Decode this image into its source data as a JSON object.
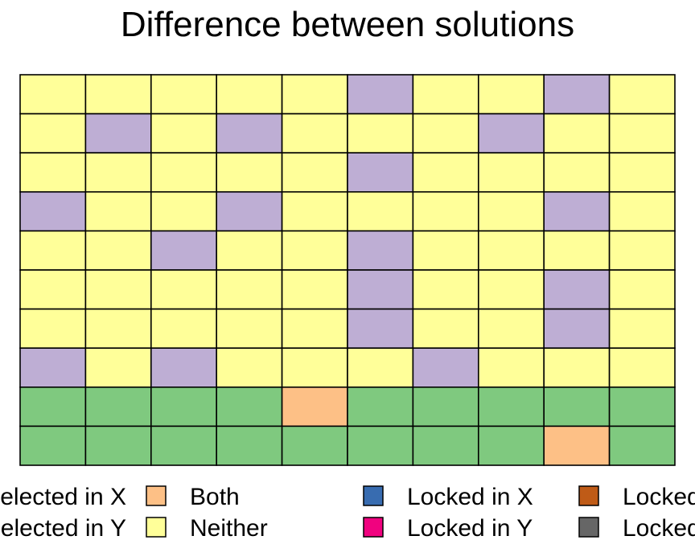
{
  "chart_data": {
    "type": "heatmap",
    "title": "Difference between solutions",
    "rows": 10,
    "cols": 10,
    "categories": {
      "S": "Selected in X",
      "Y": "Selected in Y",
      "B": "Both",
      "N": "Neither",
      "LX": "Locked in X",
      "LY": "Locked in Y",
      "LO": "Locked out in X",
      "LG": "Locked out in Y"
    },
    "colors": {
      "S": "#7fc97f",
      "Y": "#beaed4",
      "B": "#fdc086",
      "N": "#ffff99",
      "LX": "#386cb0",
      "LY": "#f0027f",
      "LO": "#bf5b17",
      "LG": "#666666"
    },
    "grid": [
      [
        "N",
        "N",
        "N",
        "N",
        "N",
        "Y",
        "N",
        "N",
        "Y",
        "N"
      ],
      [
        "N",
        "Y",
        "N",
        "Y",
        "N",
        "N",
        "N",
        "Y",
        "N",
        "N"
      ],
      [
        "N",
        "N",
        "N",
        "N",
        "N",
        "Y",
        "N",
        "N",
        "N",
        "N"
      ],
      [
        "Y",
        "N",
        "N",
        "Y",
        "N",
        "N",
        "N",
        "N",
        "Y",
        "N"
      ],
      [
        "N",
        "N",
        "Y",
        "N",
        "N",
        "Y",
        "N",
        "N",
        "N",
        "N"
      ],
      [
        "N",
        "N",
        "N",
        "N",
        "N",
        "Y",
        "N",
        "N",
        "Y",
        "N"
      ],
      [
        "N",
        "N",
        "N",
        "N",
        "N",
        "Y",
        "N",
        "N",
        "Y",
        "N"
      ],
      [
        "Y",
        "N",
        "Y",
        "N",
        "N",
        "N",
        "Y",
        "N",
        "N",
        "N"
      ],
      [
        "S",
        "S",
        "S",
        "S",
        "B",
        "S",
        "S",
        "S",
        "S",
        "S"
      ],
      [
        "S",
        "S",
        "S",
        "S",
        "S",
        "S",
        "S",
        "S",
        "B",
        "S"
      ]
    ],
    "legend": [
      {
        "key": "S",
        "label": "Selected in X"
      },
      {
        "key": "Y",
        "label": "Selected in Y"
      },
      {
        "key": "B",
        "label": "Both"
      },
      {
        "key": "N",
        "label": "Neither"
      },
      {
        "key": "LX",
        "label": "Locked in X"
      },
      {
        "key": "LY",
        "label": "Locked in Y"
      },
      {
        "key": "LO",
        "label": "Locked out in X"
      },
      {
        "key": "LG",
        "label": "Locked out in Y"
      }
    ],
    "legend_position": "bottom"
  }
}
